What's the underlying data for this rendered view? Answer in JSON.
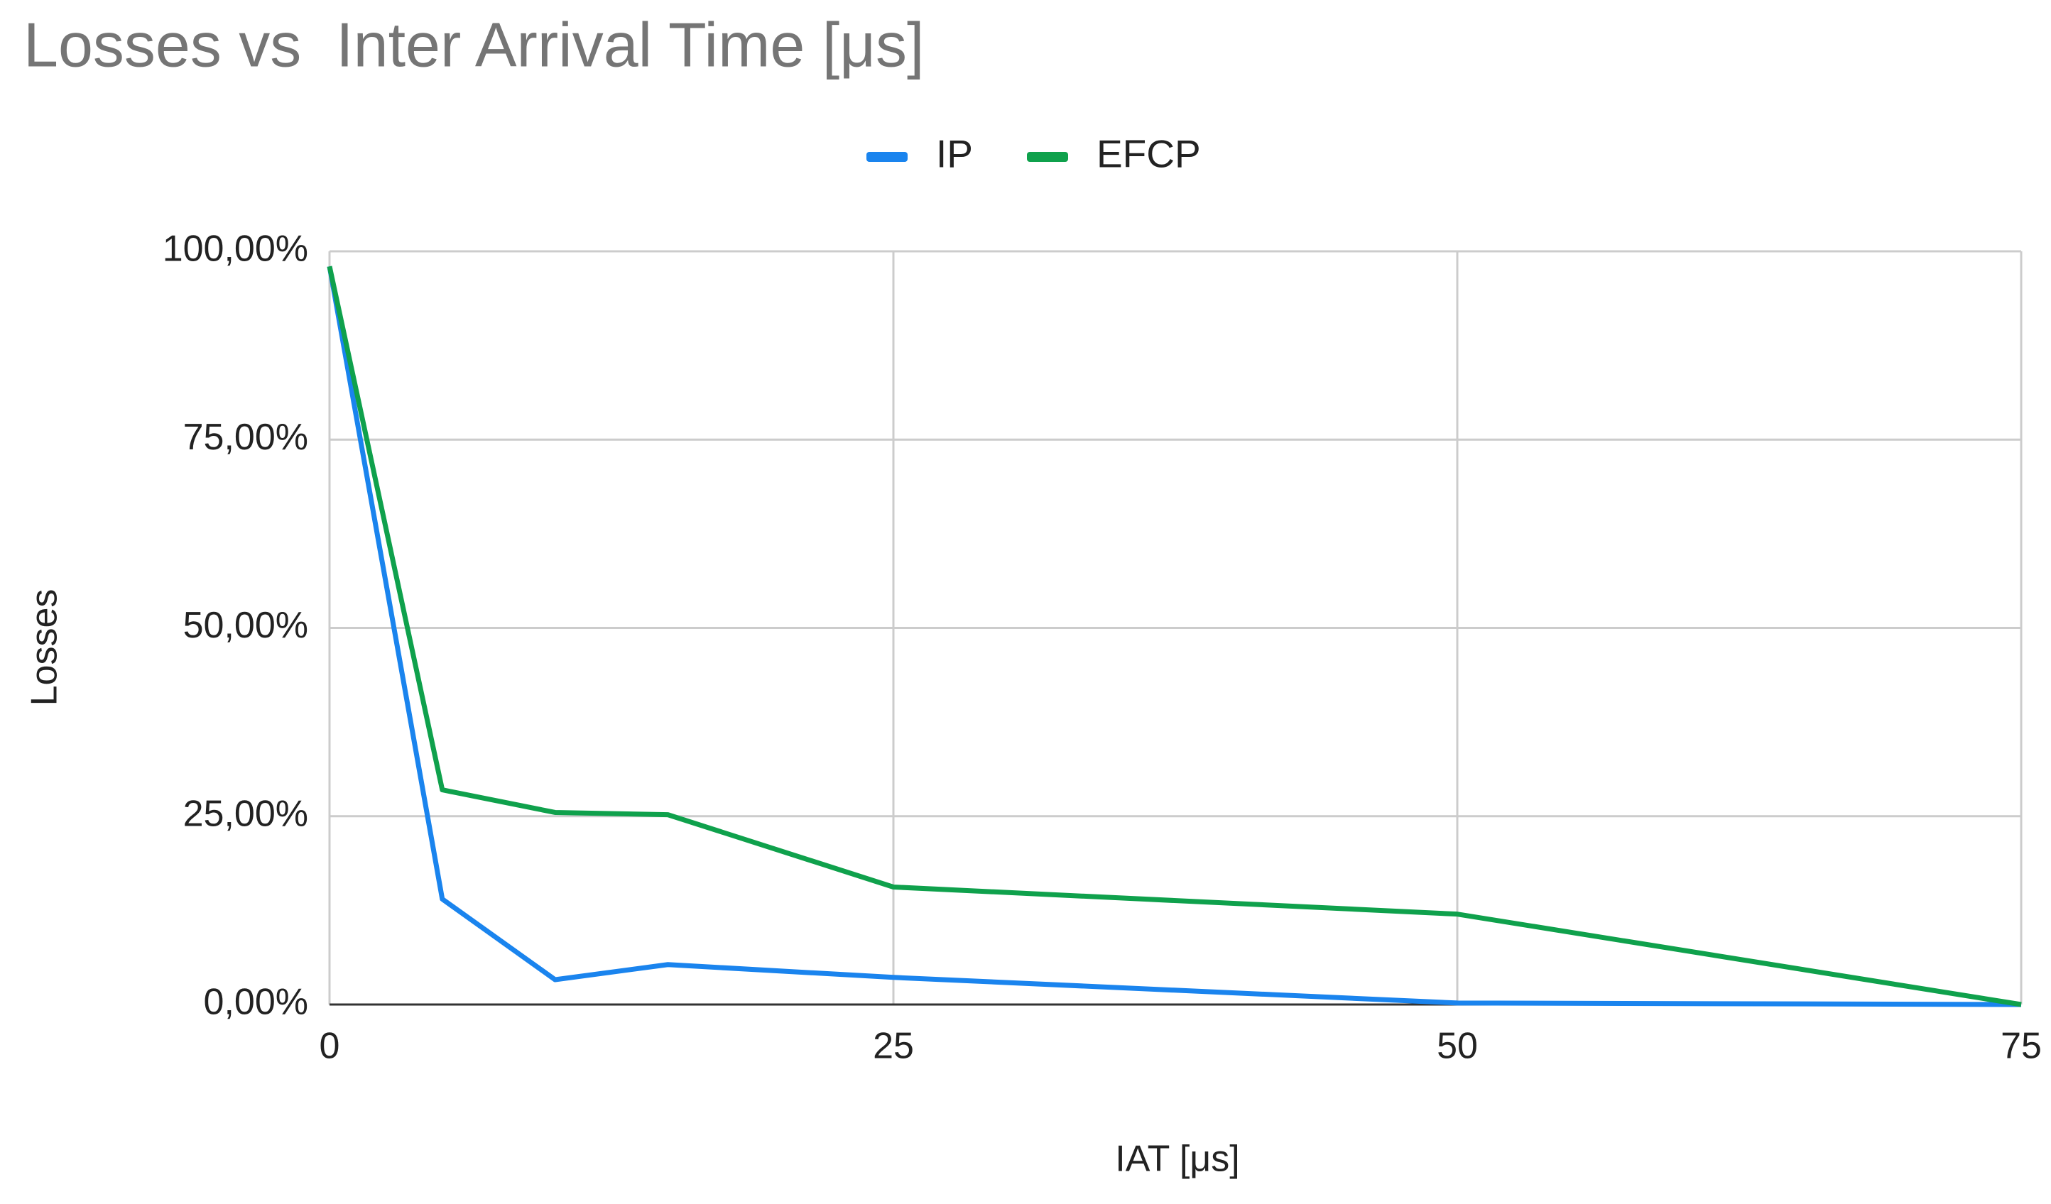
{
  "chart_data": {
    "type": "line",
    "title": "Losses vs  Inter Arrival Time [μs]",
    "x_label": "IAT [μs]",
    "y_label": "Losses",
    "x": [
      0,
      5,
      10,
      15,
      25,
      50,
      75
    ],
    "series": [
      {
        "name": "IP",
        "color": "#1a84ee",
        "values": [
          98,
          14,
          3.3,
          5.3,
          3.6,
          0.2,
          0
        ]
      },
      {
        "name": "EFCP",
        "color": "#0fa14c",
        "values": [
          98,
          28.5,
          25.5,
          25.2,
          15.6,
          12,
          0
        ]
      }
    ],
    "xlim": [
      0,
      75
    ],
    "xticks": [
      0,
      25,
      50,
      75
    ],
    "ylim": [
      0,
      100
    ],
    "yticks": [
      {
        "value": 0,
        "label": "0,00%"
      },
      {
        "value": 25,
        "label": "25,00%"
      },
      {
        "value": 50,
        "label": "50,00%"
      },
      {
        "value": 75,
        "label": "75,00%"
      },
      {
        "value": 100,
        "label": "100,00%"
      }
    ],
    "grid": true,
    "legend": "top"
  }
}
